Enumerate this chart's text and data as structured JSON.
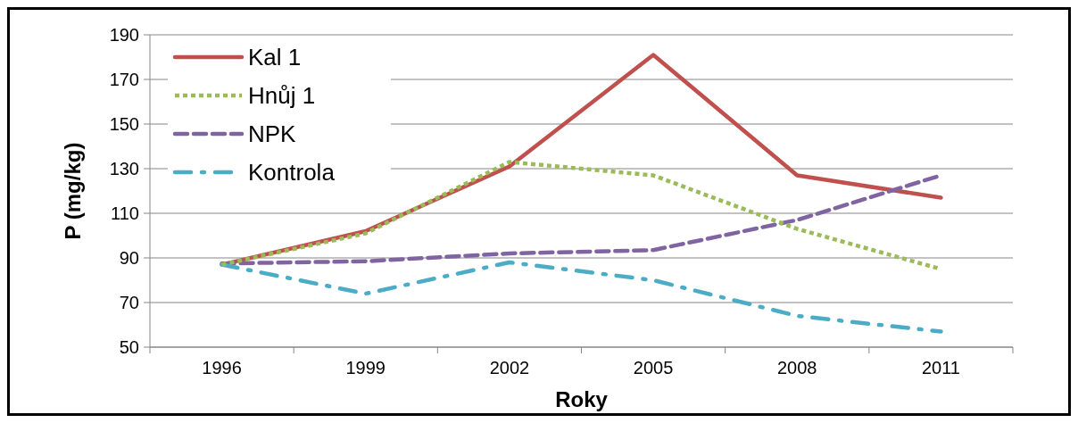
{
  "chart_data": {
    "type": "line",
    "xlabel": "Roky",
    "ylabel": "P (mg/kg)",
    "categories": [
      "1996",
      "1999",
      "2002",
      "2005",
      "2008",
      "2011"
    ],
    "series": [
      {
        "name": "Kal 1",
        "color": "#c0504d",
        "line_style": "solid",
        "values": [
          87,
          102,
          131,
          181,
          127,
          117
        ]
      },
      {
        "name": "Hnůj 1",
        "color": "#9bbb59",
        "line_style": "dotted",
        "values": [
          87,
          101,
          133,
          127,
          103,
          85
        ]
      },
      {
        "name": "NPK",
        "color": "#8064a2",
        "line_style": "dashed",
        "values": [
          87.5,
          88.5,
          92,
          93.5,
          107,
          127
        ]
      },
      {
        "name": "Kontrola",
        "color": "#4bacc6",
        "line_style": "dashdot",
        "values": [
          87,
          74,
          88,
          80,
          64,
          57
        ]
      }
    ],
    "ylim": [
      50,
      190
    ],
    "yticks": [
      50,
      70,
      90,
      110,
      130,
      150,
      170,
      190
    ],
    "grid": "y",
    "legend": "top left",
    "marker": "none"
  }
}
